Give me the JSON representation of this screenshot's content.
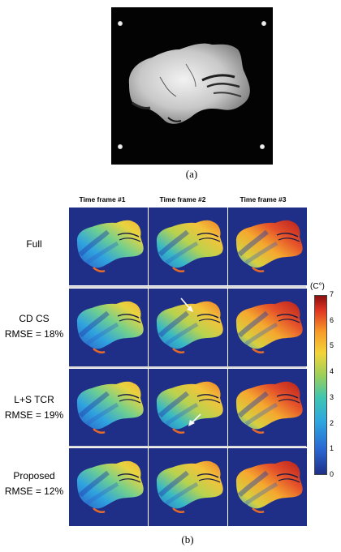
{
  "panel_a": {
    "caption": "(a)"
  },
  "panel_b": {
    "caption": "(b)",
    "columns": [
      "Time frame #1",
      "Time frame #2",
      "Time frame #3"
    ],
    "rows": [
      {
        "lines": [
          "Full"
        ]
      },
      {
        "lines": [
          "CD CS",
          "RMSE = 18%"
        ]
      },
      {
        "lines": [
          "L+S TCR",
          "RMSE = 19%"
        ]
      },
      {
        "lines": [
          "Proposed",
          "RMSE = 12%"
        ]
      }
    ],
    "colorbar": {
      "unit": "(C°)",
      "ticks": [
        "7",
        "6",
        "5",
        "4",
        "3",
        "2",
        "1",
        "0"
      ],
      "min": 0,
      "max": 7,
      "colors": [
        "#1f2f87",
        "#2b67d2",
        "#2ea8df",
        "#3fc5b0",
        "#99cf5c",
        "#f3d43a",
        "#f79a29",
        "#df3423",
        "#8b1010"
      ]
    }
  }
}
